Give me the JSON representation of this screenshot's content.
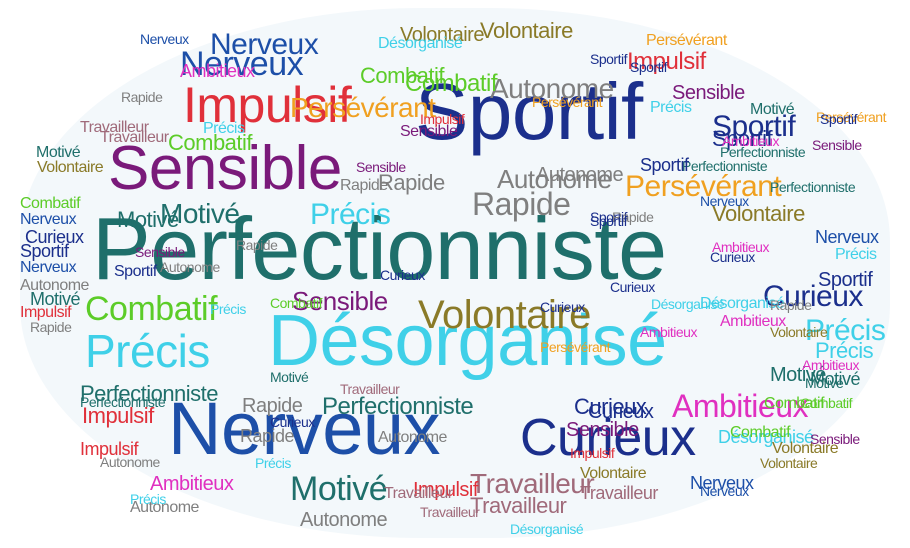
{
  "palette": {
    "teal": "#1f6f6b",
    "navy": "#1b2f8c",
    "purple": "#7a1a7a",
    "red": "#e0303a",
    "cyan": "#3fd0e8",
    "green": "#5ccc28",
    "olive": "#8a7a28",
    "orange": "#f0a020",
    "gray": "#7f7f7f",
    "blue": "#1d4fa8",
    "magenta": "#e030c0",
    "rosy": "#a06a7a"
  },
  "words": [
    {
      "text": "Perfectionniste",
      "color": "teal"
    },
    {
      "text": "Désorganisé",
      "color": "cyan"
    },
    {
      "text": "Sportif",
      "color": "navy"
    },
    {
      "text": "Nerveux",
      "color": "blue"
    },
    {
      "text": "Sensible",
      "color": "purple"
    },
    {
      "text": "Impulsif",
      "color": "red"
    },
    {
      "text": "Curieux",
      "color": "navy"
    },
    {
      "text": "Volontaire",
      "color": "olive"
    },
    {
      "text": "Précis",
      "color": "cyan"
    },
    {
      "text": "Combatif",
      "color": "green"
    },
    {
      "text": "Persévérant",
      "color": "orange"
    },
    {
      "text": "Rapide",
      "color": "gray"
    },
    {
      "text": "Autonome",
      "color": "gray"
    },
    {
      "text": "Motivé",
      "color": "teal"
    },
    {
      "text": "Ambitieux",
      "color": "magenta"
    },
    {
      "text": "Travailleur",
      "color": "rosy"
    },
    {
      "text": "Nerveux",
      "color": "blue"
    },
    {
      "text": "Sportif",
      "color": "navy"
    },
    {
      "text": "Sportif",
      "color": "navy"
    },
    {
      "text": "Volontaire",
      "color": "olive"
    },
    {
      "text": "Rapide",
      "color": "gray"
    },
    {
      "text": "Autonome",
      "color": "gray"
    },
    {
      "text": "Précis",
      "color": "cyan"
    },
    {
      "text": "Motivé",
      "color": "teal"
    },
    {
      "text": "Sensible",
      "color": "purple"
    },
    {
      "text": "Perfectionniste",
      "color": "teal"
    },
    {
      "text": "Perfectionniste",
      "color": "teal"
    },
    {
      "text": "Curieux",
      "color": "navy"
    },
    {
      "text": "Précis",
      "color": "cyan"
    },
    {
      "text": "Précis",
      "color": "cyan"
    },
    {
      "text": "Ambitieux",
      "color": "magenta"
    },
    {
      "text": "Sensible",
      "color": "purple"
    },
    {
      "text": "Combatif",
      "color": "green"
    },
    {
      "text": "Combatif",
      "color": "green"
    },
    {
      "text": "Impulsif",
      "color": "red"
    },
    {
      "text": "Impulsif",
      "color": "red"
    },
    {
      "text": "Travailleur",
      "color": "rosy"
    },
    {
      "text": "Volontaire",
      "color": "olive"
    },
    {
      "text": "Motivé",
      "color": "teal"
    },
    {
      "text": "Rapide",
      "color": "gray"
    },
    {
      "text": "Autonome",
      "color": "gray"
    },
    {
      "text": "Curieux",
      "color": "navy"
    },
    {
      "text": "Désorganisé",
      "color": "cyan"
    },
    {
      "text": "Persévérant",
      "color": "orange"
    },
    {
      "text": "Ambitieux",
      "color": "magenta"
    },
    {
      "text": "Travailleur",
      "color": "rosy"
    },
    {
      "text": "Nerveux",
      "color": "blue"
    },
    {
      "text": "Sportif",
      "color": "navy"
    },
    {
      "text": "Nerveux",
      "color": "blue"
    },
    {
      "text": "Curieux",
      "color": "navy"
    },
    {
      "text": "Rapide",
      "color": "gray"
    },
    {
      "text": "Précis",
      "color": "cyan"
    },
    {
      "text": "Sportif",
      "color": "navy"
    },
    {
      "text": "Autonome",
      "color": "gray"
    },
    {
      "text": "Motivé",
      "color": "teal"
    },
    {
      "text": "Rapide",
      "color": "gray"
    },
    {
      "text": "Combatif",
      "color": "green"
    },
    {
      "text": "Sensible",
      "color": "purple"
    },
    {
      "text": "Motivé",
      "color": "teal"
    },
    {
      "text": "Sportif",
      "color": "navy"
    },
    {
      "text": "Impulsif",
      "color": "red"
    },
    {
      "text": "Ambitieux",
      "color": "magenta"
    },
    {
      "text": "Volontaire",
      "color": "olive"
    },
    {
      "text": "Perfectionniste",
      "color": "teal"
    },
    {
      "text": "Travailleur",
      "color": "rosy"
    },
    {
      "text": "Curieux",
      "color": "navy"
    },
    {
      "text": "Sportif",
      "color": "navy"
    },
    {
      "text": "Combatif",
      "color": "green"
    },
    {
      "text": "Nerveux",
      "color": "blue"
    },
    {
      "text": "Précis",
      "color": "cyan"
    },
    {
      "text": "Désorganisé",
      "color": "cyan"
    },
    {
      "text": "Persévérant",
      "color": "orange"
    },
    {
      "text": "Autonome",
      "color": "gray"
    },
    {
      "text": "Volontaire",
      "color": "olive"
    },
    {
      "text": "Sensible",
      "color": "purple"
    },
    {
      "text": "Impulsif",
      "color": "red"
    },
    {
      "text": "Rapide",
      "color": "gray"
    },
    {
      "text": "Motivé",
      "color": "teal"
    },
    {
      "text": "Curieux",
      "color": "navy"
    },
    {
      "text": "Ambitieux",
      "color": "magenta"
    },
    {
      "text": "Sportif",
      "color": "navy"
    },
    {
      "text": "Nerveux",
      "color": "blue"
    },
    {
      "text": "Travailleur",
      "color": "rosy"
    },
    {
      "text": "Persévérant",
      "color": "orange"
    },
    {
      "text": "Combatif",
      "color": "green"
    },
    {
      "text": "Autonome",
      "color": "gray"
    },
    {
      "text": "Précis",
      "color": "cyan"
    },
    {
      "text": "Perfectionniste",
      "color": "teal"
    },
    {
      "text": "Sensible",
      "color": "purple"
    },
    {
      "text": "Volontaire",
      "color": "olive"
    },
    {
      "text": "Impulsif",
      "color": "red"
    },
    {
      "text": "Rapide",
      "color": "gray"
    },
    {
      "text": "Désorganisé",
      "color": "cyan"
    },
    {
      "text": "Curieux",
      "color": "navy"
    },
    {
      "text": "Motivé",
      "color": "teal"
    },
    {
      "text": "Nerveux",
      "color": "blue"
    },
    {
      "text": "Ambitieux",
      "color": "magenta"
    },
    {
      "text": "Sportif",
      "color": "navy"
    },
    {
      "text": "Travailleur",
      "color": "rosy"
    },
    {
      "text": "Autonome",
      "color": "gray"
    },
    {
      "text": "Combatif",
      "color": "green"
    },
    {
      "text": "Persévérant",
      "color": "orange"
    },
    {
      "text": "Précis",
      "color": "cyan"
    },
    {
      "text": "Sensible",
      "color": "purple"
    },
    {
      "text": "Rapide",
      "color": "gray"
    },
    {
      "text": "Volontaire",
      "color": "olive"
    },
    {
      "text": "Curieux",
      "color": "navy"
    },
    {
      "text": "Nerveux",
      "color": "blue"
    },
    {
      "text": "Impulsif",
      "color": "red"
    },
    {
      "text": "Motivé",
      "color": "teal"
    },
    {
      "text": "Perfectionniste",
      "color": "teal"
    },
    {
      "text": "Sportif",
      "color": "navy"
    },
    {
      "text": "Ambitieux",
      "color": "magenta"
    },
    {
      "text": "Autonome",
      "color": "gray"
    },
    {
      "text": "Désorganisé",
      "color": "cyan"
    },
    {
      "text": "Travailleur",
      "color": "rosy"
    },
    {
      "text": "Précis",
      "color": "cyan"
    },
    {
      "text": "Combatif",
      "color": "green"
    },
    {
      "text": "Sensible",
      "color": "purple"
    },
    {
      "text": "Curieux",
      "color": "navy"
    },
    {
      "text": "Nerveux",
      "color": "blue"
    },
    {
      "text": "Volontaire",
      "color": "olive"
    },
    {
      "text": "Rapide",
      "color": "gray"
    },
    {
      "text": "Persévérant",
      "color": "orange"
    },
    {
      "text": "Motivé",
      "color": "teal"
    },
    {
      "text": "Impulsif",
      "color": "red"
    },
    {
      "text": "Sportif",
      "color": "navy"
    },
    {
      "text": "Autonome",
      "color": "gray"
    },
    {
      "text": "Ambitieux",
      "color": "magenta"
    },
    {
      "text": "Précis",
      "color": "cyan"
    },
    {
      "text": "Curieux",
      "color": "navy"
    },
    {
      "text": "Travailleur",
      "color": "rosy"
    },
    {
      "text": "Sensible",
      "color": "purple"
    },
    {
      "text": "Nerveux",
      "color": "blue"
    },
    {
      "text": "Combatif",
      "color": "green"
    },
    {
      "text": "Désorganisé",
      "color": "cyan"
    },
    {
      "text": "Volontaire",
      "color": "olive"
    },
    {
      "text": "Rapide",
      "color": "gray"
    },
    {
      "text": "Perfectionniste",
      "color": "teal"
    },
    {
      "text": "Motivé",
      "color": "teal"
    },
    {
      "text": "Sportif",
      "color": "navy"
    }
  ]
}
